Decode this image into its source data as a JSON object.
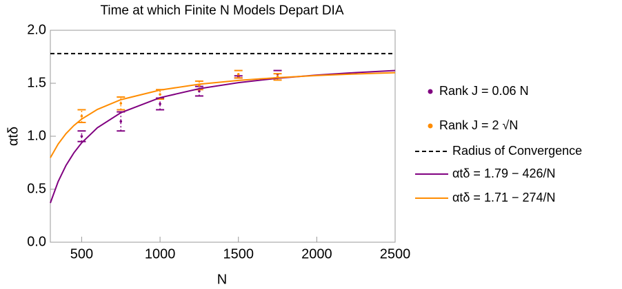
{
  "chart_data": {
    "type": "line",
    "title": "Time at which Finite N Models Depart DIA",
    "x_label": "N",
    "y_label": "αtδ",
    "xlim": [
      300,
      2500
    ],
    "xticks": [
      500,
      1000,
      1500,
      2000,
      2500
    ],
    "ylim": [
      0,
      2
    ],
    "yticks": [
      {
        "value": 0,
        "label": "0.0"
      },
      0.5,
      {
        "value": 1,
        "label": "1.0"
      },
      1.5,
      {
        "value": 2,
        "label": "2.0"
      }
    ],
    "series": [
      {
        "name": "Rank J = 0.06 N",
        "color": "#800080",
        "style": "points",
        "x": [
          500,
          750,
          1000,
          1250,
          1500,
          1750
        ],
        "values": [
          1.0,
          1.14,
          1.305,
          1.425,
          1.56,
          1.585
        ],
        "errors": [
          0.05,
          0.09,
          0.055,
          0.045,
          0.01,
          0.035
        ]
      },
      {
        "name": "Rank J = 2 √N",
        "color": "#ff8c00",
        "style": "points",
        "x": [
          500,
          750,
          1000,
          1250,
          1500,
          1750
        ],
        "values": [
          1.19,
          1.31,
          1.395,
          1.48,
          1.585,
          1.56
        ],
        "errors": [
          0.06,
          0.06,
          0.045,
          0.04,
          0.035,
          0.03
        ]
      },
      {
        "name": "Radius of Convergence",
        "color": "#000000",
        "style": "dashed",
        "x": [
          300,
          2500
        ],
        "values": [
          1.78,
          1.78
        ]
      },
      {
        "name": "αtδ = 1.79 − 426/N",
        "color": "#800080",
        "style": "line",
        "x": [
          300,
          350,
          400,
          450,
          500,
          600,
          750,
          1000,
          1250,
          1500,
          1750,
          2000,
          2250,
          2500
        ],
        "values": [
          0.37,
          0.573,
          0.725,
          0.843,
          0.938,
          1.08,
          1.222,
          1.364,
          1.449,
          1.506,
          1.547,
          1.577,
          1.601,
          1.62
        ]
      },
      {
        "name": "αtδ = 1.71 − 274/N",
        "color": "#ff8c00",
        "style": "line",
        "x": [
          300,
          350,
          400,
          450,
          500,
          600,
          750,
          1000,
          1250,
          1500,
          1750,
          2000,
          2250,
          2500
        ],
        "values": [
          0.797,
          0.927,
          1.025,
          1.101,
          1.162,
          1.253,
          1.345,
          1.436,
          1.491,
          1.527,
          1.553,
          1.573,
          1.588,
          1.6
        ]
      }
    ]
  }
}
